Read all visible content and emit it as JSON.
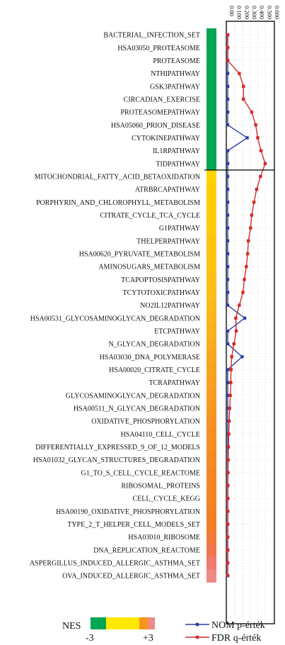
{
  "chart_data": {
    "type": "line",
    "title": "",
    "xlabel": "",
    "ylabel": "",
    "categories": [
      "BACTERIAL_INFECTION_SET",
      "HSA03050_PROTEASOME",
      "PROTEASOME",
      "NTHIPATHWAY",
      "GSK3PATHWAY",
      "CIRCADIAN_EXERCISE",
      "PROTEASOMEPATHWAY",
      "HSA05060_PRION_DISEASE",
      "CYTOKINEPATHWAY",
      "IL1RPATHWAY",
      "TIDPATHWAY",
      "MITOCHONDRIAL_FATTY_ACID_BETAOXIDATION",
      "ATRBRCAPATHWAY",
      "PORPHYRIN_AND_CHLOROPHYLL_METABOLISM",
      "CITRATE_CYCLE_TCA_CYCLE",
      "G1PATHWAY",
      "THELPERPATHWAY",
      "HSA00620_PYRUVATE_METABOLISM",
      "AMINOSUGARS_METABOLISM",
      "TCAPOPTOSISPATHWAY",
      "TCYTOTOXICPATHWAY",
      "NO2IL12PATHWAY",
      "HSA00531_GLYCOSAMINOGLYCAN_DEGRADATION",
      "ETCPATHWAY",
      "N_GLYCAN_DEGRADATION",
      "HSA03030_DNA_POLYMERASE",
      "HSA00020_CITRATE_CYCLE",
      "TCRAPATHWAY",
      "GLYCOSAMINOGLYCAN_DEGRADATION",
      "HSA00511_N_GLYCAN_DEGRADATION",
      "OXIDATIVE_PHOSPHORYLATION",
      "HSA04110_CELL_CYCLE",
      "DIFFERENTIALLY_EXPRESSED_9_OF_12_MODELS",
      "HSA01032_GLYCAN_STRUCTURES_DEGRADATION",
      "G1_TO_S_CELL_CYCLE_REACTOME",
      "RIBOSOMAL_PROTEINS",
      "CELL_CYCLE_KEGG",
      "HSA00190_OXIDATIVE_PHOSPHORYLATION",
      "TYPE_2_T_HELPER_CELL_MODELS_SET",
      "HSA03010_RIBOSOME",
      "DNA_REPLICATION_REACTOME",
      "ASPERGILLUS_INDUCED_ALLERGIC_ASTHMA_SET",
      "OVA_INDUCED_ALLERGIC_ASTHMA_SET"
    ],
    "xlim": [
      0,
      0.6
    ],
    "x_tick_labels": [
      "0.00",
      "0.100",
      "0.200",
      "0.300",
      "0.400",
      "0.500",
      "0.600"
    ],
    "grid": true,
    "series": [
      {
        "name": "NOM p-érték",
        "color": "#2b3f9e",
        "values": [
          0.0,
          0.0,
          0.0,
          0.0,
          0.0,
          0.0,
          0.0,
          0.0,
          0.258,
          0.0,
          0.0,
          0.0,
          0.0,
          0.0,
          0.0,
          0.0,
          0.0,
          0.0,
          0.0,
          0.0,
          0.0,
          0.0,
          0.225,
          0.0,
          0.0,
          0.191,
          0.0,
          0.0,
          0.0,
          0.0,
          0.0,
          0.0,
          0.0,
          0.0,
          0.0,
          0.0,
          0.0,
          0.0,
          0.0,
          0.0,
          0.0,
          0.0,
          0.0
        ]
      },
      {
        "name": "FDR q-érték",
        "color": "#d42a2a",
        "values": [
          0.0,
          0.0,
          0.0,
          0.153,
          0.209,
          0.208,
          0.318,
          0.371,
          0.398,
          0.441,
          0.497,
          0.435,
          0.383,
          0.348,
          0.318,
          0.303,
          0.274,
          0.264,
          0.247,
          0.221,
          0.202,
          0.153,
          0.107,
          0.112,
          0.083,
          0.053,
          0.044,
          0.041,
          0.034,
          0.026,
          0.02,
          0.014,
          0.01,
          0.006,
          0.004,
          0.002,
          0.002,
          0.001,
          0.0,
          0.0,
          0.0,
          0.0,
          0.0
        ]
      }
    ],
    "nes_colors": [
      "#00a651",
      "#00a651",
      "#00a651",
      "#00a651",
      "#00a651",
      "#00a651",
      "#00a651",
      "#00a651",
      "#00a651",
      "#00a651",
      "#00a651",
      "#ffd200",
      "#ffcc00",
      "#ffcb04",
      "#ffc908",
      "#ffc80b",
      "#ffc50e",
      "#ffc411",
      "#ffc213",
      "#ffbf16",
      "#febd18",
      "#fdb91a",
      "#fcb51c",
      "#fbb01d",
      "#faab1f",
      "#f9a620",
      "#f9a221",
      "#f99f22",
      "#f89b22",
      "#f89722",
      "#f79322",
      "#f69023",
      "#f58d23",
      "#f58a23",
      "#f48724",
      "#f38524",
      "#f38324",
      "#f28125",
      "#f27f27",
      "#f17b34",
      "#f07650",
      "#ef7a6e",
      "#ee8a84"
    ],
    "separator_after_index": 10,
    "legend_position": "bottom",
    "nes_legend": {
      "label": "NES",
      "min_label": "-3",
      "max_label": "+3",
      "swatches": [
        "#00a651",
        "#00a651",
        "#ffe800",
        "#ffe800",
        "#f7941d",
        "#ef8a84"
      ]
    }
  }
}
